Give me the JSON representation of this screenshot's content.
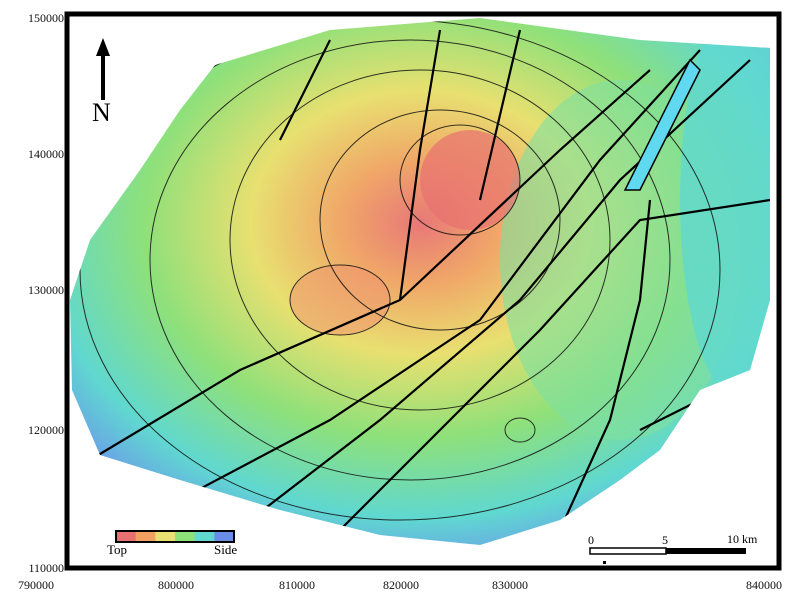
{
  "axes": {
    "x_ticks": [
      "790000",
      "800000",
      "810000",
      "820000",
      "830000",
      "840000"
    ],
    "y_ticks": [
      "150000",
      "140000",
      "130000",
      "120000",
      "110000"
    ]
  },
  "north_arrow": {
    "label": "N"
  },
  "legend": {
    "low_label": "Top",
    "high_label": "Side",
    "colors": [
      "#e87070",
      "#f0a060",
      "#e8e070",
      "#8ee07a",
      "#60d8d0",
      "#6a8ee8"
    ]
  },
  "scale_bar": {
    "labels": [
      "0",
      "5",
      "10 km"
    ]
  }
}
